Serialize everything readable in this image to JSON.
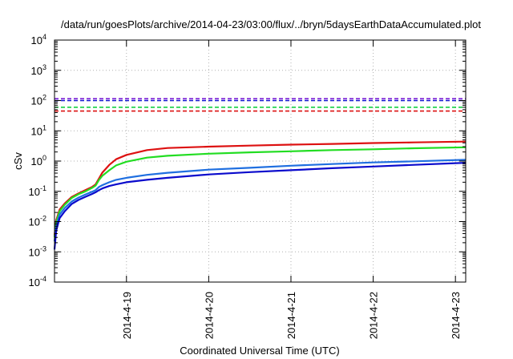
{
  "chart_data": {
    "type": "line",
    "title": "/data/run/goesPlots/archive/2014-04-23/03:00/flux/../bryn/5daysEarthDataAccumulated.plot",
    "xlabel": "Coordinated Universal Time (UTC)",
    "ylabel": "cSv",
    "yscale": "log",
    "ylim": [
      0.0001,
      10000
    ],
    "xlim": [
      "2014-04-18 03:00",
      "2014-04-23 03:00"
    ],
    "grid": true,
    "legend": "none",
    "y_ticks": [
      {
        "value": 0.0001,
        "base": "10",
        "exp": "-4"
      },
      {
        "value": 0.001,
        "base": "10",
        "exp": "-3"
      },
      {
        "value": 0.01,
        "base": "10",
        "exp": "-2"
      },
      {
        "value": 0.1,
        "base": "10",
        "exp": "-1"
      },
      {
        "value": 1,
        "base": "10",
        "exp": "0"
      },
      {
        "value": 10,
        "base": "10",
        "exp": "1"
      },
      {
        "value": 100,
        "base": "10",
        "exp": "2"
      },
      {
        "value": 1000,
        "base": "10",
        "exp": "3"
      },
      {
        "value": 10000,
        "base": "10",
        "exp": "4"
      }
    ],
    "x_ticks": [
      {
        "value": "2014-04-19 00:00",
        "label": "2014-4-19"
      },
      {
        "value": "2014-04-20 00:00",
        "label": "2014-4-20"
      },
      {
        "value": "2014-04-21 00:00",
        "label": "2014-4-21"
      },
      {
        "value": "2014-04-22 00:00",
        "label": "2014-4-22"
      },
      {
        "value": "2014-04-23 00:00",
        "label": "2014-4-23"
      }
    ],
    "thresholds": [
      {
        "color": "#7a1fd6",
        "value": 115
      },
      {
        "color": "#1010d0",
        "value": 100
      },
      {
        "color": "#00cc33",
        "value": 60
      },
      {
        "color": "#dd1111",
        "value": 45
      }
    ],
    "series": [
      {
        "color": "#dd1111",
        "points": [
          [
            "2014-04-18 03:00",
            0.0035
          ],
          [
            "2014-04-18 03:30",
            0.011
          ],
          [
            "2014-04-18 04:30",
            0.025
          ],
          [
            "2014-04-18 06:00",
            0.04
          ],
          [
            "2014-04-18 08:00",
            0.065
          ],
          [
            "2014-04-18 10:00",
            0.085
          ],
          [
            "2014-04-18 12:00",
            0.11
          ],
          [
            "2014-04-18 14:00",
            0.14
          ],
          [
            "2014-04-18 15:00",
            0.17
          ],
          [
            "2014-04-18 16:00",
            0.27
          ],
          [
            "2014-04-18 17:00",
            0.42
          ],
          [
            "2014-04-18 19:00",
            0.75
          ],
          [
            "2014-04-18 21:00",
            1.15
          ],
          [
            "2014-04-19 00:00",
            1.6
          ],
          [
            "2014-04-19 06:00",
            2.3
          ],
          [
            "2014-04-19 12:00",
            2.7
          ],
          [
            "2014-04-20 00:00",
            3.0
          ],
          [
            "2014-04-20 12:00",
            3.25
          ],
          [
            "2014-04-21 00:00",
            3.5
          ],
          [
            "2014-04-21 12:00",
            3.7
          ],
          [
            "2014-04-22 00:00",
            3.95
          ],
          [
            "2014-04-22 12:00",
            4.15
          ],
          [
            "2014-04-23 03:00",
            4.4
          ]
        ]
      },
      {
        "color": "#22dd22",
        "points": [
          [
            "2014-04-18 03:00",
            0.003
          ],
          [
            "2014-04-18 03:30",
            0.0095
          ],
          [
            "2014-04-18 04:30",
            0.022
          ],
          [
            "2014-04-18 06:00",
            0.036
          ],
          [
            "2014-04-18 08:00",
            0.06
          ],
          [
            "2014-04-18 10:00",
            0.08
          ],
          [
            "2014-04-18 12:00",
            0.1
          ],
          [
            "2014-04-18 14:00",
            0.13
          ],
          [
            "2014-04-18 15:00",
            0.155
          ],
          [
            "2014-04-18 16:00",
            0.24
          ],
          [
            "2014-04-18 17:00",
            0.33
          ],
          [
            "2014-04-18 19:00",
            0.5
          ],
          [
            "2014-04-18 21:00",
            0.72
          ],
          [
            "2014-04-19 00:00",
            0.95
          ],
          [
            "2014-04-19 06:00",
            1.3
          ],
          [
            "2014-04-19 12:00",
            1.5
          ],
          [
            "2014-04-20 00:00",
            1.75
          ],
          [
            "2014-04-20 12:00",
            1.95
          ],
          [
            "2014-04-21 00:00",
            2.1
          ],
          [
            "2014-04-21 12:00",
            2.3
          ],
          [
            "2014-04-22 00:00",
            2.45
          ],
          [
            "2014-04-22 12:00",
            2.65
          ],
          [
            "2014-04-23 03:00",
            2.85
          ]
        ]
      },
      {
        "color": "#1f6fe0",
        "points": [
          [
            "2014-04-18 03:00",
            0.0022
          ],
          [
            "2014-04-18 03:30",
            0.007
          ],
          [
            "2014-04-18 04:30",
            0.017
          ],
          [
            "2014-04-18 06:00",
            0.028
          ],
          [
            "2014-04-18 08:00",
            0.046
          ],
          [
            "2014-04-18 10:00",
            0.062
          ],
          [
            "2014-04-18 12:00",
            0.078
          ],
          [
            "2014-04-18 14:00",
            0.097
          ],
          [
            "2014-04-18 15:00",
            0.11
          ],
          [
            "2014-04-18 16:00",
            0.14
          ],
          [
            "2014-04-18 17:00",
            0.16
          ],
          [
            "2014-04-18 19:00",
            0.2
          ],
          [
            "2014-04-18 21:00",
            0.24
          ],
          [
            "2014-04-19 00:00",
            0.28
          ],
          [
            "2014-04-19 06:00",
            0.35
          ],
          [
            "2014-04-19 12:00",
            0.41
          ],
          [
            "2014-04-20 00:00",
            0.52
          ],
          [
            "2014-04-20 12:00",
            0.6
          ],
          [
            "2014-04-21 00:00",
            0.7
          ],
          [
            "2014-04-21 12:00",
            0.8
          ],
          [
            "2014-04-22 00:00",
            0.9
          ],
          [
            "2014-04-22 12:00",
            0.98
          ],
          [
            "2014-04-23 03:00",
            1.1
          ]
        ]
      },
      {
        "color": "#0a0acc",
        "points": [
          [
            "2014-04-18 03:00",
            0.0012
          ],
          [
            "2014-04-18 03:30",
            0.005
          ],
          [
            "2014-04-18 04:30",
            0.013
          ],
          [
            "2014-04-18 06:00",
            0.022
          ],
          [
            "2014-04-18 08:00",
            0.038
          ],
          [
            "2014-04-18 10:00",
            0.052
          ],
          [
            "2014-04-18 12:00",
            0.066
          ],
          [
            "2014-04-18 14:00",
            0.082
          ],
          [
            "2014-04-18 15:00",
            0.093
          ],
          [
            "2014-04-18 16:00",
            0.11
          ],
          [
            "2014-04-18 17:00",
            0.125
          ],
          [
            "2014-04-18 19:00",
            0.15
          ],
          [
            "2014-04-18 21:00",
            0.17
          ],
          [
            "2014-04-19 00:00",
            0.2
          ],
          [
            "2014-04-19 06:00",
            0.24
          ],
          [
            "2014-04-19 12:00",
            0.28
          ],
          [
            "2014-04-20 00:00",
            0.36
          ],
          [
            "2014-04-20 12:00",
            0.43
          ],
          [
            "2014-04-21 00:00",
            0.5
          ],
          [
            "2014-04-21 12:00",
            0.58
          ],
          [
            "2014-04-22 00:00",
            0.66
          ],
          [
            "2014-04-22 12:00",
            0.75
          ],
          [
            "2014-04-23 03:00",
            0.88
          ]
        ]
      }
    ]
  }
}
